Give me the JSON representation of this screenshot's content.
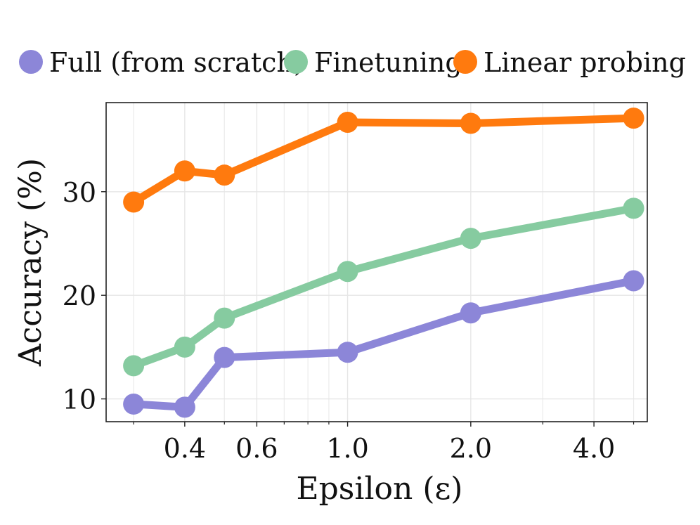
{
  "chart_data": {
    "type": "line",
    "xscale": "log",
    "xlabel": "Epsilon (ε)",
    "ylabel": "Accuracy (%)",
    "ylim": [
      7.8,
      38.6
    ],
    "xlim": [
      0.257,
      5.4
    ],
    "xticks": [
      {
        "value": 0.4,
        "label": "0.4"
      },
      {
        "value": 0.6,
        "label": "0.6"
      },
      {
        "value": 1.0,
        "label": "1.0"
      },
      {
        "value": 2.0,
        "label": "2.0"
      },
      {
        "value": 4.0,
        "label": "4.0"
      }
    ],
    "yticks": [
      {
        "value": 10,
        "label": "10"
      },
      {
        "value": 20,
        "label": "20"
      },
      {
        "value": 30,
        "label": "30"
      }
    ],
    "grid": true,
    "legend_position": "top",
    "series": [
      {
        "name": "Full (from scratch)",
        "color": "#8c86d8",
        "x": [
          0.3,
          0.4,
          0.5,
          1.0,
          2.0,
          5.0
        ],
        "y": [
          9.5,
          9.2,
          14.0,
          14.5,
          18.3,
          21.4
        ]
      },
      {
        "name": "Finetuning",
        "color": "#86cba0",
        "x": [
          0.3,
          0.4,
          0.5,
          1.0,
          2.0,
          5.0
        ],
        "y": [
          13.2,
          15.0,
          17.8,
          22.3,
          25.5,
          28.4
        ]
      },
      {
        "name": "Linear probing",
        "color": "#ff7a0e",
        "x": [
          0.3,
          0.4,
          0.5,
          1.0,
          2.0,
          5.0
        ],
        "y": [
          29.0,
          32.0,
          31.6,
          36.7,
          36.6,
          37.1
        ]
      }
    ]
  }
}
